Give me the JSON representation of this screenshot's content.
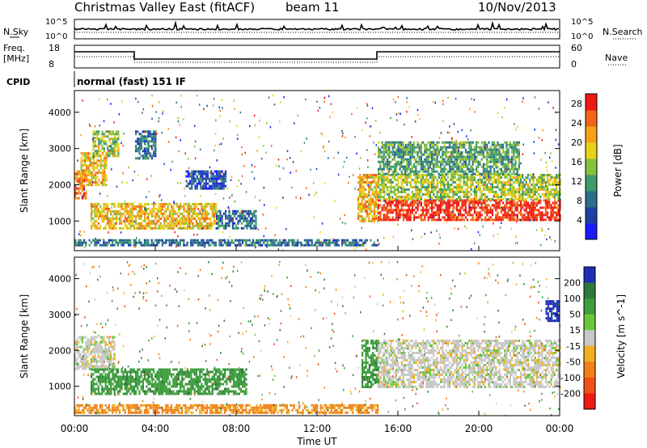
{
  "header": {
    "title": "Christmas Valley East (fitACF)",
    "beam": "beam 11",
    "date": "10/Nov/2013"
  },
  "summary_panel": {
    "nsky_label": "N.Sky",
    "nsearch_label": "N.Search",
    "nsky_ticks": [
      "10^5",
      "10^0"
    ],
    "nsearch_ticks": [
      "10^5",
      "10^0"
    ],
    "freq_label_1": "Freq.",
    "freq_label_2": "[MHz]",
    "freq_ticks": [
      "18",
      "8"
    ],
    "nave_label": "Nave",
    "nave_ticks": [
      "60",
      "0"
    ],
    "cpid_label": "CPID",
    "cpid_text": "normal (fast) 151 IF"
  },
  "chart_data": [
    {
      "type": "heatmap",
      "panel": "power",
      "ylabel": "Slant Range [km]",
      "xlabel": "Time UT",
      "x_range_hours": [
        0,
        24
      ],
      "y_range_km": [
        180,
        4600
      ],
      "xticks": [
        "00:00",
        "04:00",
        "08:00",
        "12:00",
        "16:00",
        "20:00",
        "00:00"
      ],
      "yticks": [
        1000,
        2000,
        3000,
        4000
      ],
      "colorbar": {
        "label": "Power [dB]",
        "ticks": [
          4,
          8,
          12,
          16,
          20,
          24,
          28
        ],
        "range": [
          0,
          30
        ],
        "colors": [
          "#1a1aff",
          "#1e3fa6",
          "#2b6f8a",
          "#3d9a6a",
          "#88c23a",
          "#e7d21a",
          "#f6a11a",
          "#f26418",
          "#ee1a12"
        ]
      },
      "regions": [
        {
          "t": [
            0.0,
            0.6
          ],
          "r": [
            1600,
            2400
          ],
          "level": 24
        },
        {
          "t": [
            0.3,
            1.6
          ],
          "r": [
            2000,
            2900
          ],
          "level": 20
        },
        {
          "t": [
            0.9,
            2.2
          ],
          "r": [
            2800,
            3500
          ],
          "level": 16
        },
        {
          "t": [
            0.8,
            7.0
          ],
          "r": [
            800,
            1500
          ],
          "level": 20
        },
        {
          "t": [
            7.0,
            9.0
          ],
          "r": [
            800,
            1300
          ],
          "level": 8
        },
        {
          "t": [
            3.0,
            4.0
          ],
          "r": [
            2700,
            3500
          ],
          "level": 8
        },
        {
          "t": [
            5.5,
            7.5
          ],
          "r": [
            1900,
            2400
          ],
          "level": 6
        },
        {
          "t": [
            0.0,
            15.0
          ],
          "r": [
            300,
            500
          ],
          "level": 8
        },
        {
          "t": [
            14.0,
            15.0
          ],
          "r": [
            1000,
            2300
          ],
          "level": 20
        },
        {
          "t": [
            15.0,
            24.0
          ],
          "r": [
            1000,
            1600
          ],
          "level": 28
        },
        {
          "t": [
            15.0,
            24.0
          ],
          "r": [
            1600,
            2300
          ],
          "level": 16
        },
        {
          "t": [
            15.0,
            22.0
          ],
          "r": [
            2300,
            3200
          ],
          "level": 12
        }
      ]
    },
    {
      "type": "heatmap",
      "panel": "velocity",
      "ylabel": "Slant Range [km]",
      "xlabel": "Time UT",
      "x_range_hours": [
        0,
        24
      ],
      "y_range_km": [
        180,
        4600
      ],
      "xticks": [
        "00:00",
        "04:00",
        "08:00",
        "12:00",
        "16:00",
        "20:00",
        "00:00"
      ],
      "yticks": [
        1000,
        2000,
        3000,
        4000
      ],
      "colorbar": {
        "label": "Velocity [m s^-1]",
        "ticks": [
          200,
          100,
          50,
          15,
          -15,
          -50,
          -100,
          -200
        ],
        "colors": [
          "#1c2fb5",
          "#2f7a3a",
          "#3e9e3e",
          "#6cc63a",
          "#c8c8c8",
          "#f0b020",
          "#f08018",
          "#f05018",
          "#ec1a12"
        ]
      },
      "regions": [
        {
          "t": [
            0.0,
            2.0
          ],
          "r": [
            1500,
            2400
          ],
          "value": 0
        },
        {
          "t": [
            0.8,
            8.5
          ],
          "r": [
            800,
            1500
          ],
          "value": 60
        },
        {
          "t": [
            0.0,
            15.0
          ],
          "r": [
            250,
            500
          ],
          "value": -60
        },
        {
          "t": [
            14.2,
            15.0
          ],
          "r": [
            1000,
            2300
          ],
          "value": 60
        },
        {
          "t": [
            15.0,
            24.0
          ],
          "r": [
            1000,
            2300
          ],
          "value": 0
        },
        {
          "t": [
            23.3,
            24.0
          ],
          "r": [
            2800,
            3400
          ],
          "value": 200
        }
      ]
    }
  ]
}
